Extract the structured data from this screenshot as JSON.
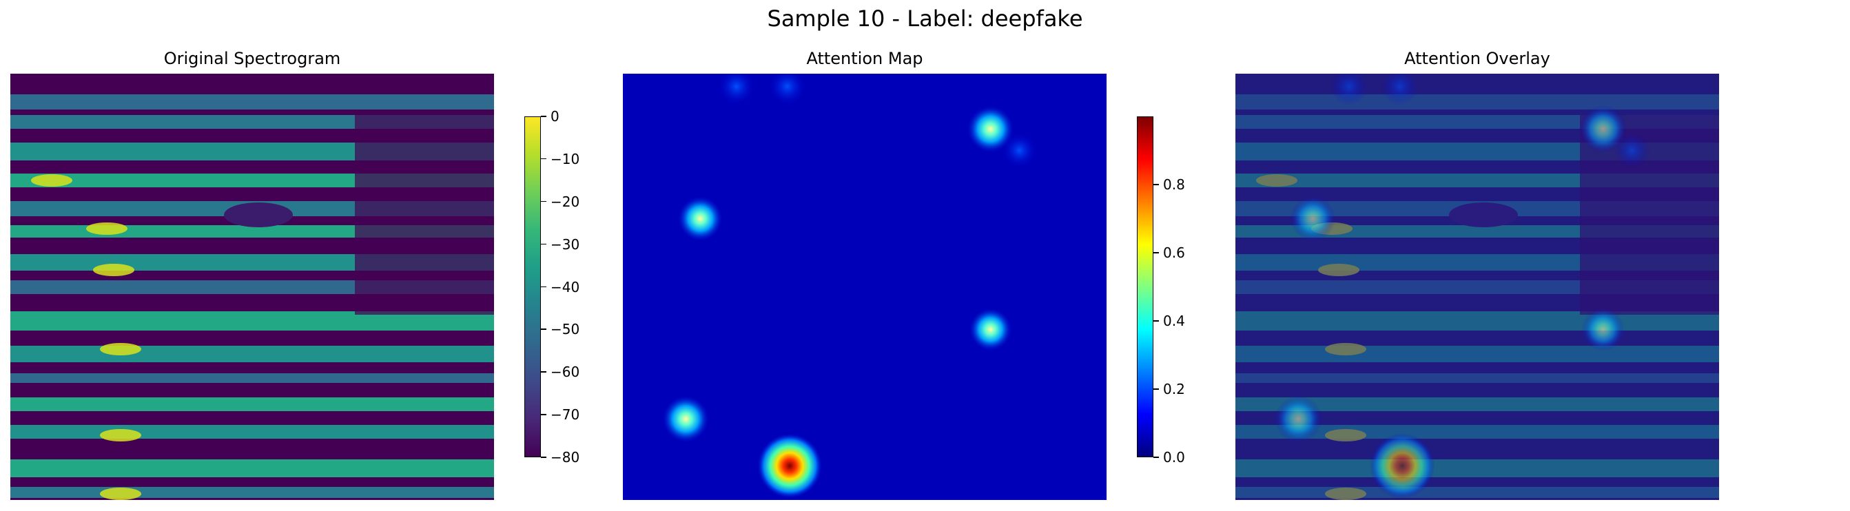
{
  "figure": {
    "suptitle": "Sample 10 - Label: deepfake"
  },
  "chart_data": [
    {
      "type": "heatmap",
      "title": "Original Spectrogram",
      "axes": "off",
      "colormap": "viridis",
      "colorbar": {
        "range": [
          -80,
          0
        ],
        "ticks": [
          0,
          -10,
          -20,
          -30,
          -40,
          -50,
          -60,
          -70,
          -80
        ]
      },
      "description_values": "log-magnitude spectrogram in dB; horizontal harmonic bands with bright (near 0 dB) patches at left, dark (-80 dB) region toward the right"
    },
    {
      "type": "heatmap",
      "title": "Attention Map",
      "axes": "off",
      "colormap": "jet",
      "colorbar": {
        "range": [
          0.0,
          1.0
        ],
        "ticks": [
          0.0,
          0.2,
          0.4,
          0.6,
          0.8
        ]
      },
      "hotspots": [
        {
          "x": 0.345,
          "y": 0.92,
          "value": 0.98
        },
        {
          "x": 0.76,
          "y": 0.13,
          "value": 0.55
        },
        {
          "x": 0.16,
          "y": 0.34,
          "value": 0.5
        },
        {
          "x": 0.13,
          "y": 0.81,
          "value": 0.55
        },
        {
          "x": 0.76,
          "y": 0.6,
          "value": 0.45
        },
        {
          "x": 0.235,
          "y": 0.03,
          "value": 0.3
        },
        {
          "x": 0.34,
          "y": 0.03,
          "value": 0.3
        },
        {
          "x": 0.82,
          "y": 0.18,
          "value": 0.25
        }
      ]
    },
    {
      "type": "heatmap",
      "title": "Attention Overlay",
      "axes": "off",
      "colormap": "viridis + jet overlay"
    }
  ],
  "colors": {
    "viridis_low": "#440154",
    "viridis_high": "#fde725",
    "jet_low": "#00007f",
    "jet_high": "#7f0000"
  }
}
